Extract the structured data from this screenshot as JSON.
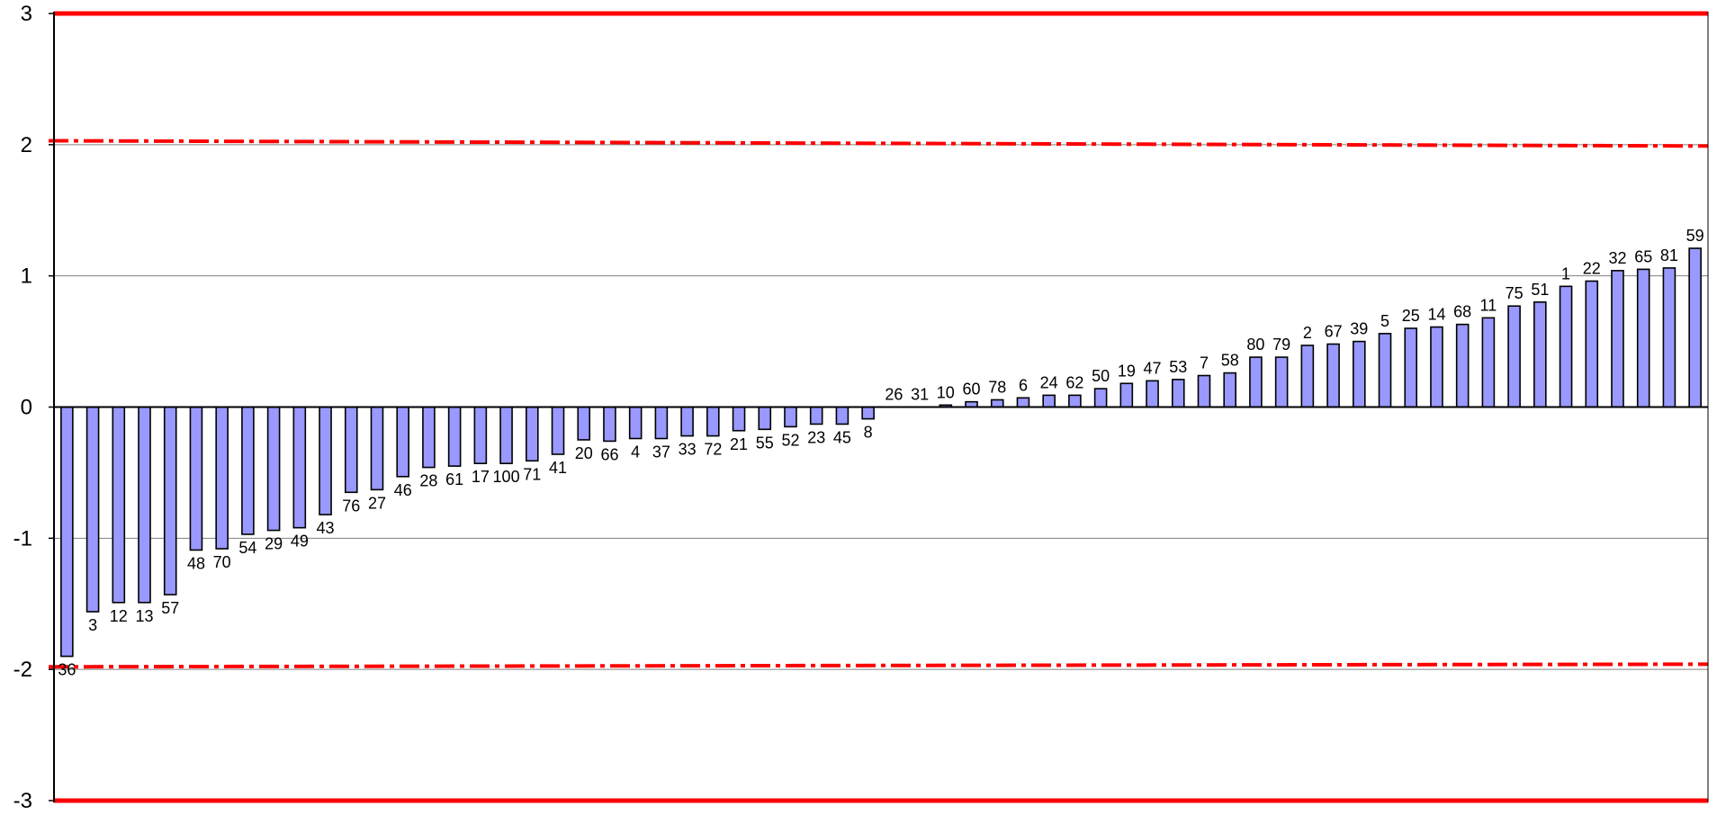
{
  "chart_data": {
    "type": "bar",
    "title": "",
    "xlabel": "",
    "ylabel": "",
    "ylim": [
      -3,
      3
    ],
    "yticks": [
      -3,
      -2,
      -1,
      0,
      1,
      2,
      3
    ],
    "grid": "horizontal",
    "legend": "none",
    "categories": [
      "36",
      "3",
      "12",
      "13",
      "57",
      "48",
      "70",
      "54",
      "29",
      "49",
      "43",
      "76",
      "27",
      "46",
      "28",
      "61",
      "17",
      "100",
      "71",
      "41",
      "20",
      "66",
      "4",
      "37",
      "33",
      "72",
      "21",
      "55",
      "52",
      "23",
      "45",
      "8",
      "26",
      "31",
      "10",
      "60",
      "78",
      "6",
      "24",
      "62",
      "50",
      "19",
      "47",
      "53",
      "7",
      "58",
      "80",
      "79",
      "2",
      "67",
      "39",
      "5",
      "25",
      "14",
      "68",
      "11",
      "75",
      "51",
      "1",
      "22",
      "32",
      "65",
      "81",
      "59"
    ],
    "values": [
      -1.9,
      -1.56,
      -1.49,
      -1.49,
      -1.43,
      -1.09,
      -1.08,
      -0.97,
      -0.94,
      -0.92,
      -0.82,
      -0.65,
      -0.63,
      -0.53,
      -0.46,
      -0.45,
      -0.43,
      -0.43,
      -0.41,
      -0.36,
      -0.25,
      -0.26,
      -0.24,
      -0.24,
      -0.22,
      -0.22,
      -0.18,
      -0.17,
      -0.15,
      -0.13,
      -0.13,
      -0.09,
      0.0,
      0.0,
      0.015,
      0.04,
      0.055,
      0.07,
      0.09,
      0.09,
      0.14,
      0.18,
      0.2,
      0.21,
      0.24,
      0.26,
      0.38,
      0.38,
      0.47,
      0.48,
      0.5,
      0.56,
      0.6,
      0.61,
      0.63,
      0.68,
      0.77,
      0.8,
      0.92,
      0.96,
      1.04,
      1.05,
      1.06,
      1.21
    ],
    "reference_lines": [
      {
        "type": "solid",
        "y": 3
      },
      {
        "type": "solid",
        "y": -3
      },
      {
        "type": "dash-dot",
        "y_start": 2.03,
        "y_end": 1.99
      },
      {
        "type": "dash-dot",
        "y_start": -1.98,
        "y_end": -1.96
      }
    ],
    "colors": {
      "bar_fill": "#9999ff",
      "bar_stroke": "#000000",
      "reference_line": "#ff0000",
      "grid": "#808080",
      "axis": "#000000"
    }
  }
}
